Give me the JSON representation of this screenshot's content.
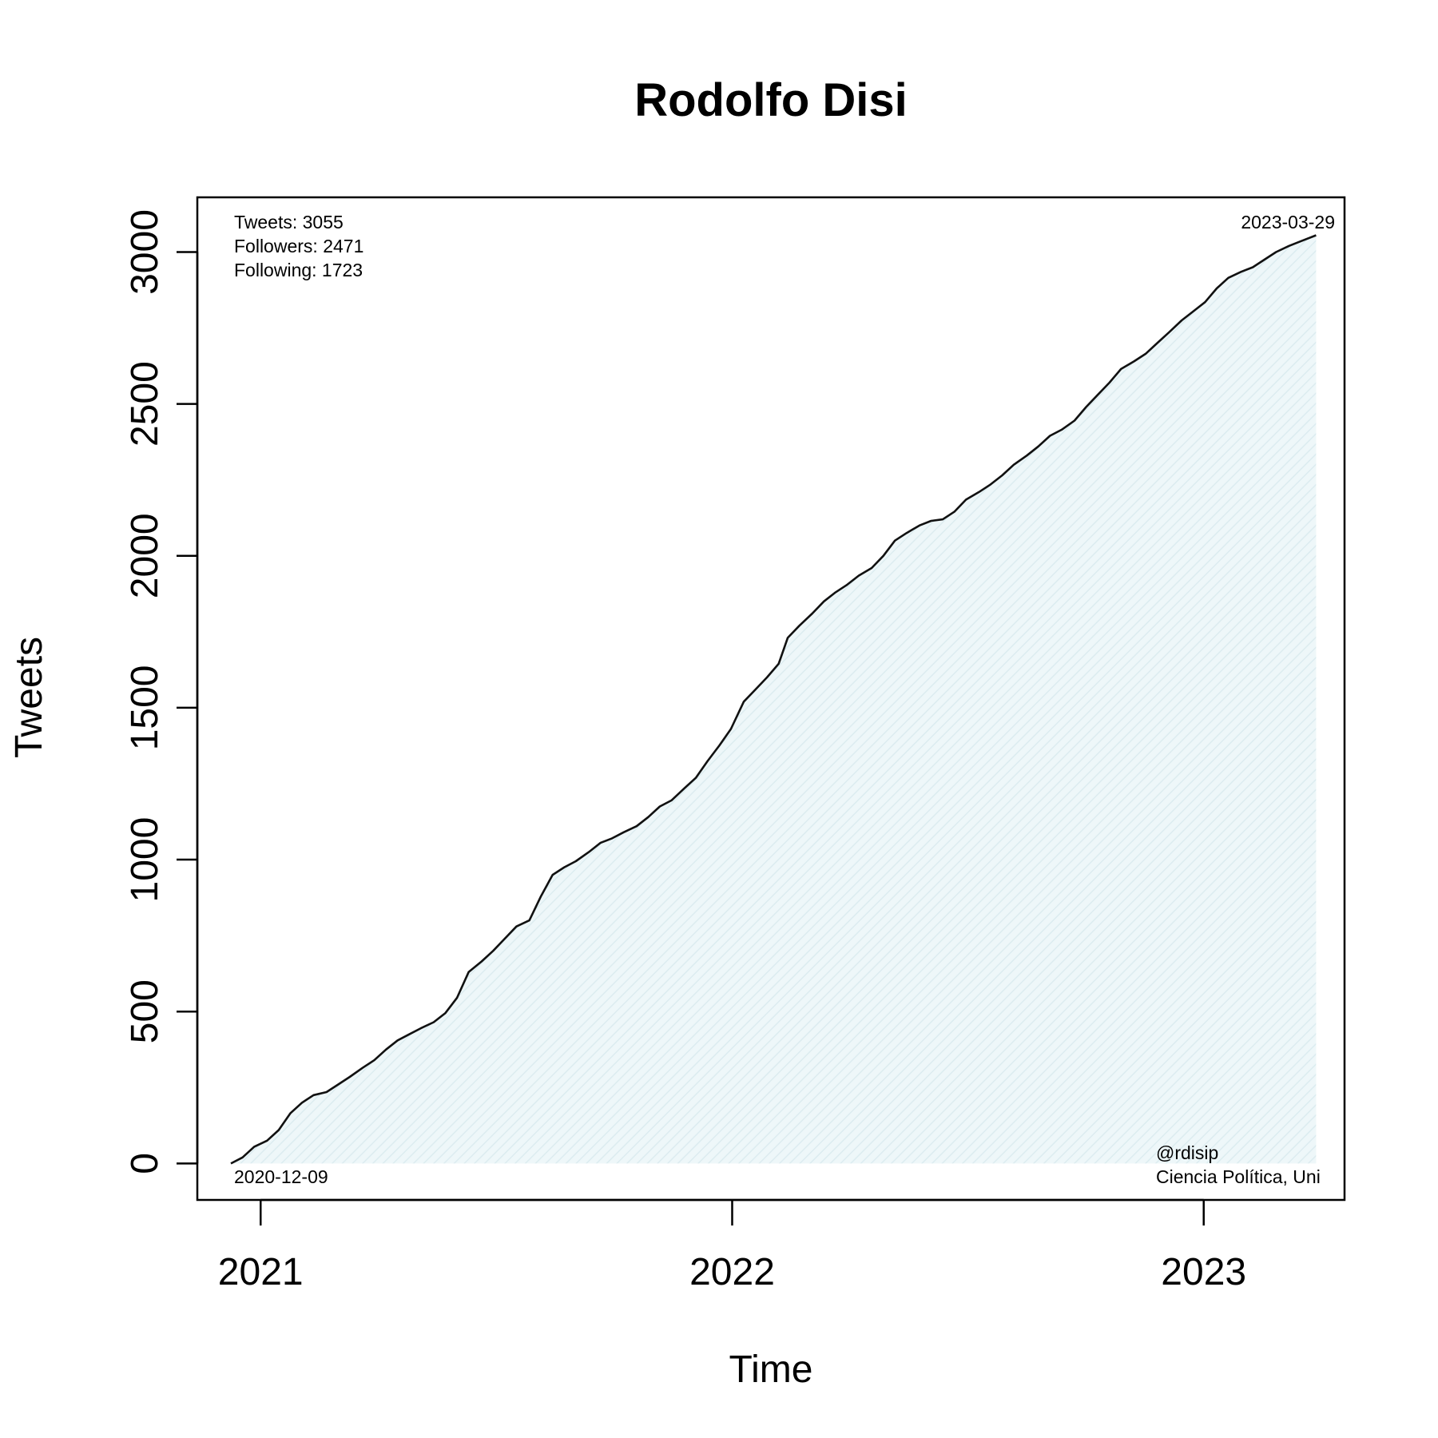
{
  "chart_data": {
    "type": "area",
    "title": "Rodolfo Disi",
    "xlabel": "Time",
    "ylabel": "Tweets",
    "x_ticks": [
      "2021",
      "2022",
      "2023"
    ],
    "y_ticks": [
      "0",
      "500",
      "1000",
      "1500",
      "2000",
      "2500",
      "3000"
    ],
    "xlim": [
      "2020-11-13",
      "2023-04-20"
    ],
    "ylim": [
      -120,
      3180
    ],
    "grid": false,
    "fill_color": "#e6f3f6",
    "line_color": "#111111",
    "annotations": {
      "stats": [
        "Tweets: 3055",
        "Followers: 2471",
        "Following: 1723"
      ],
      "end_date": "2023-03-29",
      "start_date": "2020-12-09",
      "handle": "@rdisip",
      "bio": "Ciencia Política, Uni"
    },
    "series": [
      {
        "points": [
          [
            "2020-12-09",
            0
          ],
          [
            "2020-12-18",
            20
          ],
          [
            "2020-12-27",
            55
          ],
          [
            "2021-01-06",
            75
          ],
          [
            "2021-01-15",
            110
          ],
          [
            "2021-01-24",
            165
          ],
          [
            "2021-02-02",
            200
          ],
          [
            "2021-02-11",
            225
          ],
          [
            "2021-02-21",
            235
          ],
          [
            "2021-03-02",
            260
          ],
          [
            "2021-03-11",
            285
          ],
          [
            "2021-03-21",
            315
          ],
          [
            "2021-03-30",
            340
          ],
          [
            "2021-04-08",
            375
          ],
          [
            "2021-04-17",
            405
          ],
          [
            "2021-04-26",
            425
          ],
          [
            "2021-05-05",
            445
          ],
          [
            "2021-05-15",
            465
          ],
          [
            "2021-05-24",
            495
          ],
          [
            "2021-06-02",
            545
          ],
          [
            "2021-06-11",
            630
          ],
          [
            "2021-06-21",
            665
          ],
          [
            "2021-06-30",
            700
          ],
          [
            "2021-07-09",
            740
          ],
          [
            "2021-07-18",
            780
          ],
          [
            "2021-07-28",
            800
          ],
          [
            "2021-08-06",
            880
          ],
          [
            "2021-08-15",
            950
          ],
          [
            "2021-08-24",
            975
          ],
          [
            "2021-09-02",
            995
          ],
          [
            "2021-09-12",
            1025
          ],
          [
            "2021-09-21",
            1055
          ],
          [
            "2021-09-30",
            1070
          ],
          [
            "2021-10-09",
            1090
          ],
          [
            "2021-10-19",
            1110
          ],
          [
            "2021-10-28",
            1140
          ],
          [
            "2021-11-06",
            1175
          ],
          [
            "2021-11-15",
            1195
          ],
          [
            "2021-11-25",
            1235
          ],
          [
            "2021-12-04",
            1270
          ],
          [
            "2021-12-13",
            1325
          ],
          [
            "2021-12-22",
            1375
          ],
          [
            "2021-12-31",
            1430
          ],
          [
            "2022-01-10",
            1520
          ],
          [
            "2022-01-19",
            1560
          ],
          [
            "2022-01-28",
            1600
          ],
          [
            "2022-02-06",
            1645
          ],
          [
            "2022-02-13",
            1730
          ],
          [
            "2022-02-22",
            1770
          ],
          [
            "2022-03-04",
            1810
          ],
          [
            "2022-03-13",
            1850
          ],
          [
            "2022-03-22",
            1880
          ],
          [
            "2022-03-31",
            1905
          ],
          [
            "2022-04-09",
            1935
          ],
          [
            "2022-04-19",
            1960
          ],
          [
            "2022-04-28",
            2000
          ],
          [
            "2022-05-07",
            2050
          ],
          [
            "2022-05-16",
            2075
          ],
          [
            "2022-05-26",
            2100
          ],
          [
            "2022-06-04",
            2115
          ],
          [
            "2022-06-13",
            2120
          ],
          [
            "2022-06-22",
            2145
          ],
          [
            "2022-07-01",
            2185
          ],
          [
            "2022-07-11",
            2210
          ],
          [
            "2022-07-20",
            2235
          ],
          [
            "2022-07-29",
            2265
          ],
          [
            "2022-08-07",
            2300
          ],
          [
            "2022-08-17",
            2330
          ],
          [
            "2022-08-26",
            2360
          ],
          [
            "2022-09-04",
            2395
          ],
          [
            "2022-09-13",
            2415
          ],
          [
            "2022-09-23",
            2445
          ],
          [
            "2022-10-02",
            2490
          ],
          [
            "2022-10-11",
            2530
          ],
          [
            "2022-10-20",
            2570
          ],
          [
            "2022-10-29",
            2615
          ],
          [
            "2022-11-08",
            2640
          ],
          [
            "2022-11-17",
            2665
          ],
          [
            "2022-11-26",
            2700
          ],
          [
            "2022-12-05",
            2735
          ],
          [
            "2022-12-15",
            2775
          ],
          [
            "2022-12-24",
            2805
          ],
          [
            "2023-01-02",
            2835
          ],
          [
            "2023-01-11",
            2880
          ],
          [
            "2023-01-20",
            2915
          ],
          [
            "2023-01-30",
            2935
          ],
          [
            "2023-02-08",
            2950
          ],
          [
            "2023-02-17",
            2975
          ],
          [
            "2023-02-26",
            3000
          ],
          [
            "2023-03-08",
            3020
          ],
          [
            "2023-03-17",
            3035
          ],
          [
            "2023-03-29",
            3055
          ]
        ]
      }
    ]
  }
}
